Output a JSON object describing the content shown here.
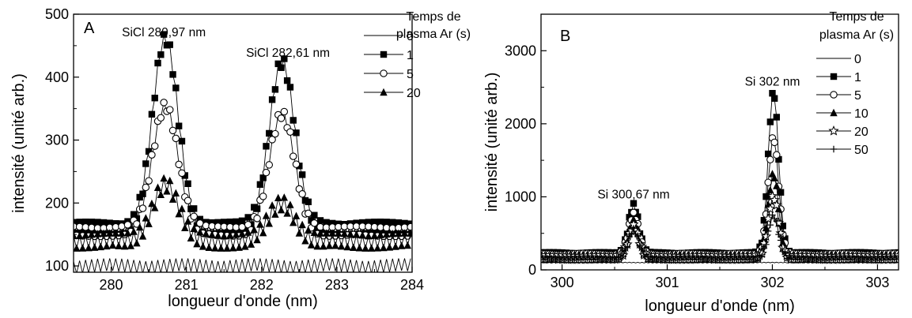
{
  "chart_data": [
    {
      "type": "line",
      "panel_label": "A",
      "xlabel": "longueur d'onde (nm)",
      "ylabel": "intensité (unité arb.)",
      "xlim": [
        279.5,
        284
      ],
      "ylim": [
        90,
        500
      ],
      "xticks": [
        280,
        281,
        282,
        283,
        284
      ],
      "yticks": [
        100,
        200,
        300,
        400,
        500
      ],
      "grid": false,
      "legend_title": [
        "Temps de",
        "plasma Ar (s)"
      ],
      "legend_position": "top-right",
      "annotations": [
        {
          "text": "SiCl 280,97 nm",
          "x": 280.7,
          "y": 465
        },
        {
          "text": "SiCl 282,61 nm",
          "x": 282.35,
          "y": 432
        }
      ],
      "peak_shapes": [
        {
          "center": 280.72,
          "width": 0.17
        },
        {
          "center": 282.27,
          "width": 0.17
        }
      ],
      "series": [
        {
          "name": "0",
          "marker": "none",
          "baseline": 100,
          "zigzag": 12,
          "peaks": [
            0,
            0
          ]
        },
        {
          "name": "1",
          "marker": "square",
          "baseline": 160,
          "zigzag": 10,
          "peaks": [
            300,
            265
          ]
        },
        {
          "name": "5",
          "marker": "circle",
          "baseline": 155,
          "zigzag": 8,
          "peaks": [
            200,
            185
          ]
        },
        {
          "name": "20",
          "marker": "triangle",
          "baseline": 140,
          "zigzag": 12,
          "peaks": [
            90,
            60
          ]
        }
      ]
    },
    {
      "type": "line",
      "panel_label": "B",
      "xlabel": "longueur d'onde (nm)",
      "ylabel": "intensité (unité arb.)",
      "xlim": [
        299.8,
        303.2
      ],
      "ylim": [
        0,
        3500
      ],
      "xticks": [
        300,
        301,
        302,
        303
      ],
      "yticks": [
        0,
        1000,
        2000,
        3000
      ],
      "grid": false,
      "legend_title": [
        "Temps de",
        "plasma Ar (s)"
      ],
      "legend_position": "top-right",
      "annotations": [
        {
          "text": "Si 300,67 nm",
          "x": 300.68,
          "y": 980
        },
        {
          "text": "Si 302 nm",
          "x": 302.0,
          "y": 2520
        }
      ],
      "peak_shapes": [
        {
          "center": 300.68,
          "width": 0.05
        },
        {
          "center": 302.01,
          "width": 0.05
        }
      ],
      "series": [
        {
          "name": "0",
          "marker": "none",
          "baseline": 100,
          "zigzag": 6,
          "peaks": [
            0,
            0
          ]
        },
        {
          "name": "1",
          "marker": "square",
          "baseline": 200,
          "zigzag": 40,
          "peaks": [
            680,
            2230
          ]
        },
        {
          "name": "5",
          "marker": "circle",
          "baseline": 190,
          "zigzag": 35,
          "peaks": [
            560,
            1620
          ]
        },
        {
          "name": "10",
          "marker": "triangle",
          "baseline": 180,
          "zigzag": 35,
          "peaks": [
            480,
            1120
          ]
        },
        {
          "name": "20",
          "marker": "star",
          "baseline": 170,
          "zigzag": 30,
          "peaks": [
            430,
            830
          ]
        },
        {
          "name": "50",
          "marker": "plus",
          "baseline": 160,
          "zigzag": 30,
          "peaks": [
            380,
            580
          ]
        }
      ]
    }
  ]
}
